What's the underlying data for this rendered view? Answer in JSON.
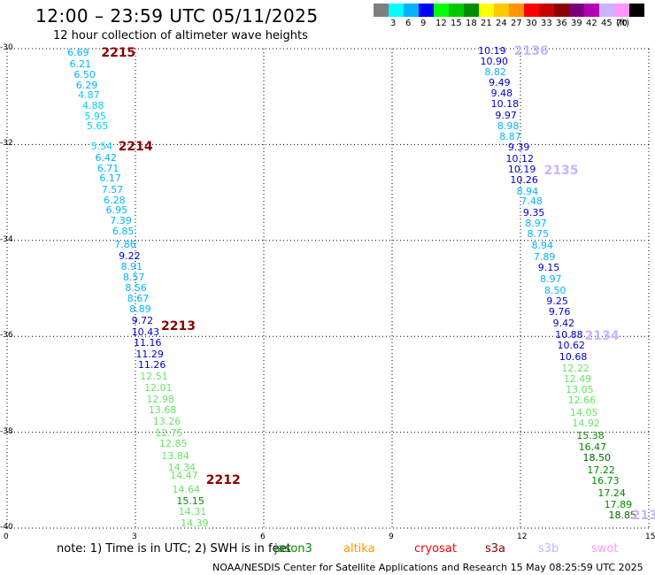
{
  "header": {
    "title": "12:00 – 23:59 UTC 05/11/2025",
    "subtitle": "12 hour collection of altimeter wave heights"
  },
  "legend": {
    "unit": "(ft)",
    "bins": [
      {
        "label": "",
        "color": "#7f7f7f"
      },
      {
        "label": "3",
        "color": "#00ffff"
      },
      {
        "label": "6",
        "color": "#00b4ff"
      },
      {
        "label": "9",
        "color": "#0000ff"
      },
      {
        "label": "12",
        "color": "#00ff00"
      },
      {
        "label": "15",
        "color": "#00c800"
      },
      {
        "label": "18",
        "color": "#008c00"
      },
      {
        "label": "21",
        "color": "#ffff00"
      },
      {
        "label": "24",
        "color": "#ffc800"
      },
      {
        "label": "27",
        "color": "#ff9600"
      },
      {
        "label": "30",
        "color": "#ff0000"
      },
      {
        "label": "33",
        "color": "#c80000"
      },
      {
        "label": "36",
        "color": "#8c0000"
      },
      {
        "label": "39",
        "color": "#780078"
      },
      {
        "label": "42",
        "color": "#b400b4"
      },
      {
        "label": "45",
        "color": "#c8b4ff"
      },
      {
        "label": "70",
        "color": "#ff96ff"
      },
      {
        "label": "",
        "color": "#000000"
      }
    ]
  },
  "chart_data": {
    "type": "scatter",
    "xlim": [
      0,
      15
    ],
    "ylim": [
      -40,
      -30
    ],
    "x_ticks": [
      "0",
      "3",
      "6",
      "9",
      "12",
      "15"
    ],
    "y_ticks": [
      "-30",
      "-32",
      "-34",
      "-36",
      "-38",
      "-40"
    ],
    "passes": [
      {
        "label": "2215",
        "x": 2.2,
        "y": -30.1,
        "color": "#8b0000"
      },
      {
        "label": "2214",
        "x": 2.6,
        "y": -32.05,
        "color": "#8b0000"
      },
      {
        "label": "2213",
        "x": 3.6,
        "y": -35.8,
        "color": "#8b0000"
      },
      {
        "label": "2212",
        "x": 4.65,
        "y": -39.0,
        "color": "#8b0000"
      },
      {
        "label": "2136",
        "x": 11.85,
        "y": -30.05,
        "color": "#c8b4ff"
      },
      {
        "label": "2135",
        "x": 12.55,
        "y": -32.55,
        "color": "#c8b4ff"
      },
      {
        "label": "2134",
        "x": 13.5,
        "y": -36.0,
        "color": "#c8b4ff"
      },
      {
        "label": "213",
        "x": 14.6,
        "y": -39.75,
        "color": "#c8b4ff"
      }
    ],
    "tracks": [
      {
        "points": [
          {
            "x": 1.45,
            "y": -30.1,
            "v": "6.69",
            "c": "#00b4ff"
          },
          {
            "x": 1.5,
            "y": -30.33,
            "v": "6.21",
            "c": "#00b4ff"
          },
          {
            "x": 1.6,
            "y": -30.55,
            "v": "6.50",
            "c": "#00b4ff"
          },
          {
            "x": 1.65,
            "y": -30.77,
            "v": "6.29",
            "c": "#00b4ff"
          },
          {
            "x": 1.7,
            "y": -30.98,
            "v": "4.87",
            "c": "#00cfff"
          },
          {
            "x": 1.8,
            "y": -31.2,
            "v": "4.88",
            "c": "#00cfff"
          },
          {
            "x": 1.85,
            "y": -31.42,
            "v": "5.95",
            "c": "#00cfff"
          },
          {
            "x": 1.9,
            "y": -31.63,
            "v": "5.65",
            "c": "#00cfff"
          },
          {
            "x": 2.0,
            "y": -32.05,
            "v": "5.54",
            "c": "#00cfff"
          },
          {
            "x": 2.1,
            "y": -32.28,
            "v": "6.42",
            "c": "#00b4ff"
          },
          {
            "x": 2.15,
            "y": -32.5,
            "v": "6.71",
            "c": "#00b4ff"
          },
          {
            "x": 2.2,
            "y": -32.72,
            "v": "6.17",
            "c": "#00b4ff"
          },
          {
            "x": 2.25,
            "y": -32.95,
            "v": "7.57",
            "c": "#00b4ff"
          },
          {
            "x": 2.3,
            "y": -33.17,
            "v": "6.28",
            "c": "#00b4ff"
          },
          {
            "x": 2.35,
            "y": -33.38,
            "v": "6.95",
            "c": "#00b4ff"
          },
          {
            "x": 2.45,
            "y": -33.6,
            "v": "7.39",
            "c": "#00b4ff"
          },
          {
            "x": 2.5,
            "y": -33.82,
            "v": "6.85",
            "c": "#00b4ff"
          },
          {
            "x": 2.55,
            "y": -34.1,
            "v": "7.86",
            "c": "#00b4ff"
          },
          {
            "x": 2.65,
            "y": -34.33,
            "v": "9.22",
            "c": "#0000cd"
          },
          {
            "x": 2.7,
            "y": -34.55,
            "v": "8.91",
            "c": "#00b4ff"
          },
          {
            "x": 2.75,
            "y": -34.78,
            "v": "8.57",
            "c": "#00b4ff"
          },
          {
            "x": 2.8,
            "y": -35.0,
            "v": "8.56",
            "c": "#00b4ff"
          },
          {
            "x": 2.85,
            "y": -35.22,
            "v": "8.67",
            "c": "#00b4ff"
          },
          {
            "x": 2.9,
            "y": -35.45,
            "v": "8.89",
            "c": "#00b4ff"
          },
          {
            "x": 2.95,
            "y": -35.68,
            "v": "9.72",
            "c": "#0000cd"
          },
          {
            "x": 2.95,
            "y": -35.92,
            "v": "10.43",
            "c": "#0000cd"
          },
          {
            "x": 3.0,
            "y": -36.15,
            "v": "11.16",
            "c": "#0000cd"
          },
          {
            "x": 3.05,
            "y": -36.38,
            "v": "11.29",
            "c": "#0000cd"
          },
          {
            "x": 3.1,
            "y": -36.6,
            "v": "11.26",
            "c": "#0000cd"
          },
          {
            "x": 3.15,
            "y": -36.85,
            "v": "12.51",
            "c": "#66e566"
          },
          {
            "x": 3.25,
            "y": -37.08,
            "v": "12.01",
            "c": "#66e566"
          },
          {
            "x": 3.3,
            "y": -37.32,
            "v": "12.98",
            "c": "#66e566"
          },
          {
            "x": 3.35,
            "y": -37.55,
            "v": "13.68",
            "c": "#66e566"
          },
          {
            "x": 3.45,
            "y": -37.78,
            "v": "13.26",
            "c": "#66e566"
          },
          {
            "x": 3.5,
            "y": -38.02,
            "v": "12.75",
            "c": "#66e566"
          },
          {
            "x": 3.6,
            "y": -38.25,
            "v": "12.85",
            "c": "#66e566"
          },
          {
            "x": 3.65,
            "y": -38.5,
            "v": "13.84",
            "c": "#66e566"
          },
          {
            "x": 3.8,
            "y": -38.75,
            "v": "14.34",
            "c": "#66e566"
          },
          {
            "x": 3.85,
            "y": -38.92,
            "v": "14.47",
            "c": "#66e566"
          },
          {
            "x": 3.9,
            "y": -39.2,
            "v": "14.64",
            "c": "#66e566"
          },
          {
            "x": 4.0,
            "y": -39.45,
            "v": "15.15",
            "c": "#008c00"
          },
          {
            "x": 4.05,
            "y": -39.67,
            "v": "14.31",
            "c": "#66e566"
          },
          {
            "x": 4.1,
            "y": -39.9,
            "v": "14.39",
            "c": "#66e566"
          }
        ]
      },
      {
        "points": [
          {
            "x": 11.05,
            "y": -30.05,
            "v": "10.19",
            "c": "#0000cd"
          },
          {
            "x": 11.1,
            "y": -30.27,
            "v": "10.90",
            "c": "#0000cd"
          },
          {
            "x": 11.2,
            "y": -30.5,
            "v": "8.82",
            "c": "#00b4ff"
          },
          {
            "x": 11.3,
            "y": -30.72,
            "v": "9.49",
            "c": "#0000cd"
          },
          {
            "x": 11.35,
            "y": -30.95,
            "v": "9.48",
            "c": "#0000cd"
          },
          {
            "x": 11.35,
            "y": -31.17,
            "v": "10.18",
            "c": "#0000cd"
          },
          {
            "x": 11.45,
            "y": -31.4,
            "v": "9.97",
            "c": "#0000cd"
          },
          {
            "x": 11.5,
            "y": -31.62,
            "v": "8.98",
            "c": "#00b4ff"
          },
          {
            "x": 11.55,
            "y": -31.85,
            "v": "8.87",
            "c": "#00b4ff"
          },
          {
            "x": 11.75,
            "y": -32.07,
            "v": "9.39",
            "c": "#0000cd"
          },
          {
            "x": 11.7,
            "y": -32.3,
            "v": "10.12",
            "c": "#0000cd"
          },
          {
            "x": 11.75,
            "y": -32.53,
            "v": "10.19",
            "c": "#0000cd"
          },
          {
            "x": 11.8,
            "y": -32.75,
            "v": "10.26",
            "c": "#0000cd"
          },
          {
            "x": 11.95,
            "y": -32.98,
            "v": "8.94",
            "c": "#00b4ff"
          },
          {
            "x": 12.05,
            "y": -33.2,
            "v": "7.48",
            "c": "#00b4ff"
          },
          {
            "x": 12.1,
            "y": -33.43,
            "v": "9.35",
            "c": "#0000cd"
          },
          {
            "x": 12.15,
            "y": -33.66,
            "v": "8.97",
            "c": "#00b4ff"
          },
          {
            "x": 12.2,
            "y": -33.88,
            "v": "8.75",
            "c": "#00b4ff"
          },
          {
            "x": 12.3,
            "y": -34.12,
            "v": "8.94",
            "c": "#00b4ff"
          },
          {
            "x": 12.35,
            "y": -34.35,
            "v": "7.89",
            "c": "#00b4ff"
          },
          {
            "x": 12.45,
            "y": -34.58,
            "v": "9.15",
            "c": "#0000cd"
          },
          {
            "x": 12.5,
            "y": -34.82,
            "v": "8.97",
            "c": "#00b4ff"
          },
          {
            "x": 12.6,
            "y": -35.05,
            "v": "8.50",
            "c": "#00b4ff"
          },
          {
            "x": 12.65,
            "y": -35.28,
            "v": "9.25",
            "c": "#0000cd"
          },
          {
            "x": 12.7,
            "y": -35.5,
            "v": "9.76",
            "c": "#0000cd"
          },
          {
            "x": 12.8,
            "y": -35.73,
            "v": "9.42",
            "c": "#0000cd"
          },
          {
            "x": 12.85,
            "y": -35.98,
            "v": "10.88",
            "c": "#0000cd"
          },
          {
            "x": 12.9,
            "y": -36.2,
            "v": "10.62",
            "c": "#0000cd"
          },
          {
            "x": 12.95,
            "y": -36.43,
            "v": "10.68",
            "c": "#0000cd"
          },
          {
            "x": 13.0,
            "y": -36.67,
            "v": "12.22",
            "c": "#66e566"
          },
          {
            "x": 13.05,
            "y": -36.9,
            "v": "12.49",
            "c": "#66e566"
          },
          {
            "x": 13.1,
            "y": -37.12,
            "v": "13.05",
            "c": "#66e566"
          },
          {
            "x": 13.15,
            "y": -37.35,
            "v": "12.66",
            "c": "#66e566"
          },
          {
            "x": 13.2,
            "y": -37.6,
            "v": "14.05",
            "c": "#66e566"
          },
          {
            "x": 13.25,
            "y": -37.83,
            "v": "14.92",
            "c": "#66e566"
          },
          {
            "x": 13.35,
            "y": -38.08,
            "v": "15.38",
            "c": "#008c00"
          },
          {
            "x": 13.4,
            "y": -38.32,
            "v": "16.47",
            "c": "#008c00"
          },
          {
            "x": 13.5,
            "y": -38.55,
            "v": "18.50",
            "c": "#006400"
          },
          {
            "x": 13.6,
            "y": -38.8,
            "v": "17.22",
            "c": "#008c00"
          },
          {
            "x": 13.7,
            "y": -39.03,
            "v": "16.73",
            "c": "#008c00"
          },
          {
            "x": 13.85,
            "y": -39.28,
            "v": "17.24",
            "c": "#008c00"
          },
          {
            "x": 14.0,
            "y": -39.52,
            "v": "17.89",
            "c": "#008c00"
          },
          {
            "x": 14.1,
            "y": -39.75,
            "v": "18.85",
            "c": "#006400"
          }
        ]
      }
    ]
  },
  "note": "note:  1) Time is in UTC;  2) SWH is in feet",
  "satellites": [
    {
      "name": "jason3",
      "color": "#008c00"
    },
    {
      "name": "altika",
      "color": "#ff9600"
    },
    {
      "name": "cryosat",
      "color": "#ff0000"
    },
    {
      "name": "s3a",
      "color": "#8b0000"
    },
    {
      "name": "s3b",
      "color": "#c8b4ff"
    },
    {
      "name": "swot",
      "color": "#ff96ff"
    }
  ],
  "footer": "NOAA/NESDIS Center for Satellite Applications and Research    15 May 08:25:59 UTC 2025"
}
